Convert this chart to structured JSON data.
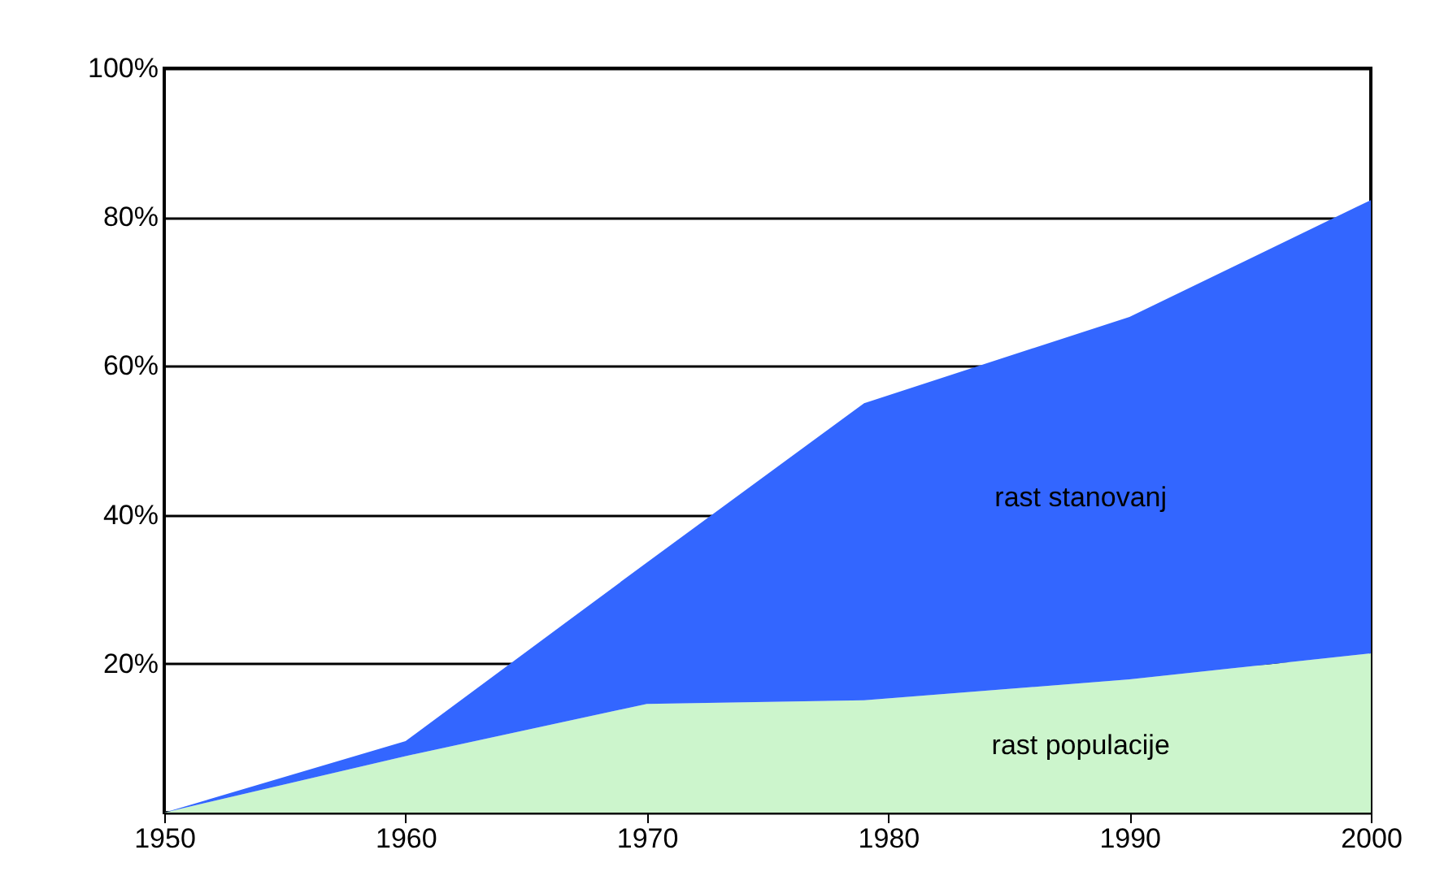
{
  "chart_data": {
    "type": "area",
    "stacked": true,
    "x": [
      1950,
      1960,
      1970,
      1979,
      1990,
      2000
    ],
    "series": [
      {
        "name": "rast populacije",
        "color": "#ccf5cc",
        "values": [
          0,
          7.6,
          14.6,
          15.1,
          17.9,
          21.4
        ]
      },
      {
        "name": "rast stanovanj",
        "color": "#3366ff",
        "values": [
          0,
          2.0,
          19.0,
          39.9,
          48.7,
          60.9
        ]
      }
    ],
    "xlim": [
      1950,
      2000
    ],
    "xticks": [
      1950,
      1960,
      1970,
      1980,
      1990,
      2000
    ],
    "ylim": [
      0,
      100
    ],
    "yticks": [
      {
        "value": 0,
        "label": null
      },
      {
        "value": 20,
        "label": "20%"
      },
      {
        "value": 40,
        "label": "40%"
      },
      {
        "value": 60,
        "label": "60%"
      },
      {
        "value": 80,
        "label": "80%"
      },
      {
        "value": 100,
        "label": "100%"
      }
    ],
    "grid": "y",
    "legend": false
  }
}
